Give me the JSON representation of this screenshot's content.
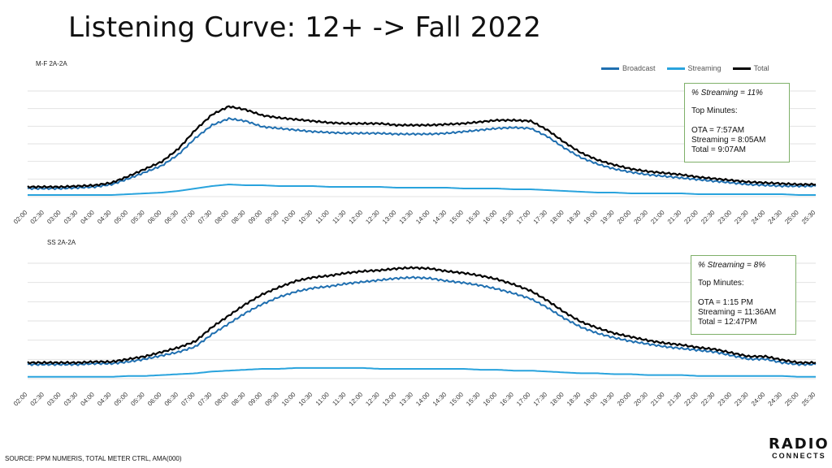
{
  "title": "Listening Curve: 12+ -> Fall 2022",
  "legend": [
    {
      "label": "Broadcast",
      "color": "#1f6fb0"
    },
    {
      "label": "Streaming",
      "color": "#29a3dd"
    },
    {
      "label": "Total",
      "color": "#000000"
    }
  ],
  "source": "SOURCE: PPM NUMERIS, TOTAL METER CTRL, AMA(000)",
  "logo": {
    "line1": "RADIO",
    "line2": "CONNECTS"
  },
  "chart_data": [
    {
      "type": "line",
      "title": "M-F 2A-2A",
      "x": [
        "02:00",
        "02:30",
        "03:00",
        "03:30",
        "04:00",
        "04:30",
        "05:00",
        "05:30",
        "06:00",
        "06:30",
        "07:00",
        "07:30",
        "08:00",
        "08:30",
        "09:00",
        "09:30",
        "10:00",
        "10:30",
        "11:00",
        "11:30",
        "12:00",
        "12:30",
        "13:00",
        "13:30",
        "14:00",
        "14:30",
        "15:00",
        "15:30",
        "16:00",
        "16:30",
        "17:00",
        "17:30",
        "18:00",
        "18:30",
        "19:00",
        "19:30",
        "20:00",
        "20:30",
        "21:00",
        "21:30",
        "22:00",
        "22:30",
        "23:00",
        "23:30",
        "24:00",
        "24:30",
        "25:00",
        "25:30"
      ],
      "series": [
        {
          "name": "Broadcast",
          "color": "#1f6fb0",
          "values": [
            10,
            10,
            10,
            11,
            12,
            15,
            22,
            30,
            38,
            52,
            72,
            88,
            96,
            93,
            86,
            84,
            82,
            80,
            79,
            78,
            78,
            78,
            77,
            77,
            77,
            78,
            80,
            82,
            84,
            85,
            84,
            74,
            60,
            48,
            40,
            34,
            30,
            27,
            25,
            23,
            21,
            19,
            17,
            15,
            14,
            13,
            13,
            13
          ]
        },
        {
          "name": "Streaming",
          "color": "#29a3dd",
          "values": [
            2,
            2,
            2,
            2,
            2,
            2,
            3,
            4,
            5,
            7,
            10,
            13,
            15,
            14,
            14,
            13,
            13,
            13,
            12,
            12,
            12,
            12,
            11,
            11,
            11,
            11,
            10,
            10,
            10,
            9,
            9,
            8,
            7,
            6,
            5,
            5,
            4,
            4,
            4,
            4,
            3,
            3,
            3,
            3,
            3,
            3,
            2,
            2
          ]
        },
        {
          "name": "Total",
          "color": "#000000",
          "values": [
            12,
            12,
            12,
            13,
            14,
            17,
            25,
            34,
            43,
            59,
            82,
            101,
            111,
            107,
            100,
            97,
            95,
            93,
            91,
            90,
            90,
            90,
            88,
            88,
            88,
            89,
            90,
            92,
            94,
            94,
            93,
            82,
            67,
            54,
            45,
            39,
            34,
            31,
            29,
            27,
            24,
            22,
            20,
            18,
            17,
            16,
            15,
            15
          ]
        }
      ],
      "ylim": [
        0,
        130
      ],
      "grid": true,
      "annotation": {
        "line1": "% Streaming = 11%",
        "line2": "Top Minutes:",
        "line3": "OTA = 7:57AM",
        "line4": "Streaming = 8:05AM",
        "line5": "Total = 9:07AM"
      }
    },
    {
      "type": "line",
      "title": "SS 2A-2A",
      "x": [
        "02:00",
        "02:30",
        "03:00",
        "03:30",
        "04:00",
        "04:30",
        "05:00",
        "05:30",
        "06:00",
        "06:30",
        "07:00",
        "07:30",
        "08:00",
        "08:30",
        "09:00",
        "09:30",
        "10:00",
        "10:30",
        "11:00",
        "11:30",
        "12:00",
        "12:30",
        "13:00",
        "13:30",
        "14:00",
        "14:30",
        "15:00",
        "15:30",
        "16:00",
        "16:30",
        "17:00",
        "17:30",
        "18:00",
        "18:30",
        "19:00",
        "19:30",
        "20:00",
        "20:30",
        "21:00",
        "21:30",
        "22:00",
        "22:30",
        "23:00",
        "23:30",
        "24:00",
        "24:30",
        "25:00",
        "25:30"
      ],
      "series": [
        {
          "name": "Broadcast",
          "color": "#1f6fb0",
          "values": [
            16,
            16,
            16,
            16,
            17,
            17,
            19,
            22,
            26,
            30,
            36,
            50,
            62,
            74,
            84,
            92,
            98,
            102,
            104,
            107,
            109,
            111,
            113,
            114,
            113,
            110,
            108,
            105,
            101,
            96,
            90,
            80,
            68,
            58,
            51,
            46,
            42,
            39,
            36,
            34,
            32,
            30,
            26,
            22,
            22,
            18,
            16,
            16
          ]
        },
        {
          "name": "Streaming",
          "color": "#29a3dd",
          "values": [
            2,
            2,
            2,
            2,
            2,
            2,
            3,
            3,
            4,
            5,
            6,
            8,
            9,
            10,
            11,
            11,
            12,
            12,
            12,
            12,
            12,
            11,
            11,
            11,
            11,
            11,
            11,
            10,
            10,
            9,
            9,
            8,
            7,
            6,
            6,
            5,
            5,
            4,
            4,
            4,
            3,
            3,
            3,
            3,
            3,
            3,
            2,
            2
          ]
        },
        {
          "name": "Total",
          "color": "#000000",
          "values": [
            18,
            18,
            18,
            18,
            19,
            19,
            22,
            25,
            30,
            35,
            42,
            58,
            71,
            84,
            95,
            103,
            110,
            114,
            116,
            119,
            121,
            122,
            124,
            125,
            124,
            121,
            119,
            116,
            112,
            106,
            99,
            88,
            75,
            64,
            57,
            51,
            47,
            43,
            40,
            38,
            35,
            33,
            29,
            25,
            25,
            21,
            18,
            18
          ]
        }
      ],
      "ylim": [
        0,
        130
      ],
      "grid": true,
      "annotation": {
        "line1": "% Streaming = 8%",
        "line2": "Top Minutes:",
        "line3": "OTA = 1:15 PM",
        "line4": "Streaming = 11:36AM",
        "line5": "Total = 12:47PM"
      }
    }
  ]
}
